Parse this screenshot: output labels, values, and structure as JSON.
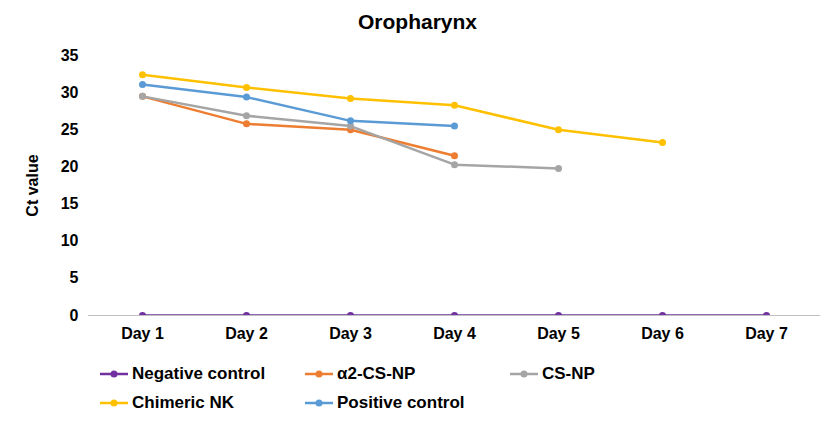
{
  "chart_data": {
    "type": "line",
    "title": "Oropharynx",
    "y_label": "Ct value",
    "categories": [
      "Day 1",
      "Day 2",
      "Day 3",
      "Day 4",
      "Day 5",
      "Day 6",
      "Day 7"
    ],
    "series": [
      {
        "name": "Negative control",
        "color": "#7030a0",
        "marker": "circle",
        "values": [
          0,
          0,
          0,
          0,
          0,
          0,
          0
        ]
      },
      {
        "name": "α2-CS-NP",
        "color": "#ed7d31",
        "marker": "circle",
        "values": [
          29.5,
          25.8,
          25.0,
          21.5,
          null,
          null,
          null
        ]
      },
      {
        "name": "CS-NP",
        "color": "#a5a5a5",
        "marker": "circle",
        "values": [
          29.5,
          26.9,
          25.5,
          20.3,
          19.8,
          null,
          null
        ]
      },
      {
        "name": "Chimeric NK",
        "color": "#ffc000",
        "marker": "circle",
        "values": [
          32.4,
          30.7,
          29.2,
          28.3,
          25.0,
          23.3,
          null
        ]
      },
      {
        "name": "Positive control",
        "color": "#5b9bd5",
        "marker": "circle",
        "values": [
          31.1,
          29.4,
          26.2,
          25.5,
          null,
          null,
          null
        ]
      }
    ],
    "ylim": [
      0,
      35
    ],
    "yticks": [
      0,
      5,
      10,
      15,
      20,
      25,
      30,
      35
    ],
    "grid": false,
    "legend": "bottom"
  }
}
